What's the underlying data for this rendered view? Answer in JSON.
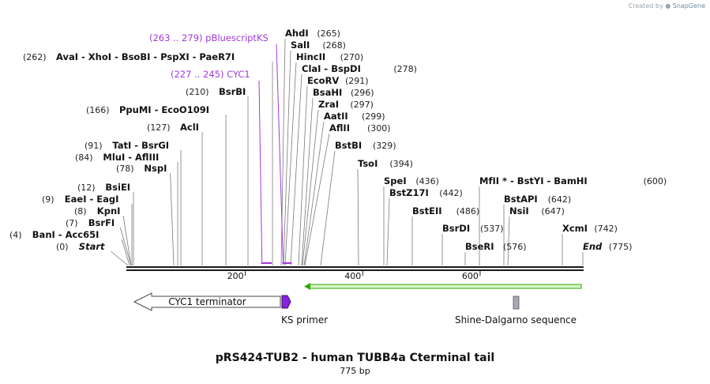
{
  "watermark": {
    "prefix": "Created by",
    "brand": "SnapGene"
  },
  "plasmid": {
    "name": "pRS424-TUB2 - human TUBB4a Cterminal tail",
    "length_label": "775 bp",
    "length": 775
  },
  "sites": [
    {
      "name": "Start",
      "pos": 0,
      "label": "(0)",
      "italic": true
    },
    {
      "name": "BanI  -  Acc65I",
      "pos": 4,
      "label": "(4)"
    },
    {
      "name": "BsrFI",
      "pos": 7,
      "label": "(7)"
    },
    {
      "name": "KpnI",
      "pos": 8,
      "label": "(8)"
    },
    {
      "name": "EaeI  -  EagI",
      "pos": 9,
      "label": "(9)"
    },
    {
      "name": "BsiEI",
      "pos": 12,
      "label": "(12)"
    },
    {
      "name": "NspI",
      "pos": 78,
      "label": "(78)"
    },
    {
      "name": "MluI  -  AflIII",
      "pos": 84,
      "label": "(84)"
    },
    {
      "name": "TatI  -  BsrGI",
      "pos": 91,
      "label": "(91)"
    },
    {
      "name": "AclI",
      "pos": 127,
      "label": "(127)"
    },
    {
      "name": "PpuMI  -  EcoO109I",
      "pos": 166,
      "label": "(166)"
    },
    {
      "name": "BsrBI",
      "pos": 210,
      "label": "(210)"
    },
    {
      "name": "AvaI  -  XhoI  -  BsoBI  -  PspXI  -  PaeR7I",
      "pos": 262,
      "label": "(262)"
    },
    {
      "name": "AhdI",
      "pos": 265,
      "label": "(265)"
    },
    {
      "name": "SalI",
      "pos": 268,
      "label": "(268)"
    },
    {
      "name": "HincII",
      "pos": 270,
      "label": "(270)"
    },
    {
      "name": "ClaI  -  BspDI",
      "pos": 278,
      "label": "(278)"
    },
    {
      "name": "EcoRV",
      "pos": 291,
      "label": "(291)"
    },
    {
      "name": "BsaHI",
      "pos": 296,
      "label": "(296)"
    },
    {
      "name": "ZraI",
      "pos": 297,
      "label": "(297)"
    },
    {
      "name": "AatII",
      "pos": 299,
      "label": "(299)"
    },
    {
      "name": "AflII",
      "pos": 300,
      "label": "(300)"
    },
    {
      "name": "BstBI",
      "pos": 329,
      "label": "(329)"
    },
    {
      "name": "TsoI",
      "pos": 394,
      "label": "(394)"
    },
    {
      "name": "SpeI",
      "pos": 436,
      "label": "(436)"
    },
    {
      "name": "BstZ17I",
      "pos": 442,
      "label": "(442)"
    },
    {
      "name": "BstEII",
      "pos": 486,
      "label": "(486)"
    },
    {
      "name": "BsrDI",
      "pos": 537,
      "label": "(537)"
    },
    {
      "name": "BseRI",
      "pos": 576,
      "label": "(576)"
    },
    {
      "name": "MfII *  -  BstYI  -  BamHI",
      "pos": 600,
      "label": "(600)"
    },
    {
      "name": "BstAPI",
      "pos": 642,
      "label": "(642)"
    },
    {
      "name": "NsiI",
      "pos": 647,
      "label": "(647)"
    },
    {
      "name": "XcmI",
      "pos": 742,
      "label": "(742)"
    },
    {
      "name": "End",
      "pos": 775,
      "label": "(775)",
      "italic": true
    }
  ],
  "primer_sites": [
    {
      "label": "(263 .. 279)  pBluescriptKS",
      "start": 263,
      "end": 279
    },
    {
      "label": "(227 .. 245)  CYC1",
      "start": 227,
      "end": 245
    }
  ],
  "axis_ticks": [
    "200",
    "400",
    "600"
  ],
  "axis_tick_values": [
    200,
    400,
    600
  ],
  "features": [
    {
      "name": "CYC1 terminator",
      "start": 1,
      "end": 261,
      "direction": "reverse",
      "color": "#ffffff"
    },
    {
      "name": "KS primer",
      "start": 263,
      "end": 279,
      "direction": "forward",
      "color": "#8b21e0"
    },
    {
      "name": "",
      "start": 300,
      "end": 775,
      "direction": "reverse",
      "color": "#2ea800"
    },
    {
      "name": "Shine-Dalgarno sequence",
      "start": 655,
      "end": 661,
      "direction": "none",
      "color": "#a8a8b8"
    }
  ],
  "colors": {
    "primer": "#a23ad8",
    "backbone": "#1a1a1a",
    "leader": "#7a7a7a",
    "orf": "#3ab000"
  }
}
